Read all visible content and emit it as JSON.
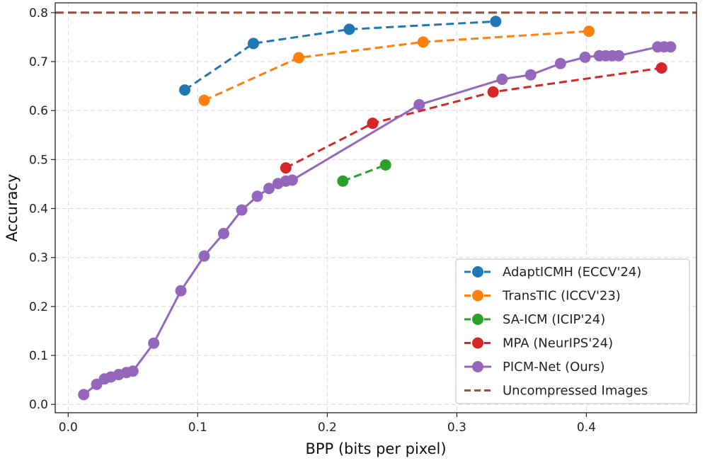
{
  "chart_data": {
    "type": "line",
    "xlabel": "BPP (bits per pixel)",
    "ylabel": "Accuracy",
    "xlim": [
      -0.01,
      0.485
    ],
    "ylim": [
      -0.017,
      0.82
    ],
    "x_ticks": [
      0.0,
      0.1,
      0.2,
      0.3,
      0.4
    ],
    "x_tick_labels": [
      "0.0",
      "0.1",
      "0.2",
      "0.3",
      "0.4"
    ],
    "y_ticks": [
      0.0,
      0.1,
      0.2,
      0.3,
      0.4,
      0.5,
      0.6,
      0.7,
      0.8
    ],
    "y_tick_labels": [
      "0.0",
      "0.1",
      "0.2",
      "0.3",
      "0.4",
      "0.5",
      "0.6",
      "0.7",
      "0.8"
    ],
    "grid": true,
    "legend_position": "bottom-right",
    "series": [
      {
        "name": "AdaptICMH (ECCV'24)",
        "color": "#1f77b4",
        "style": "dashed",
        "marker": "circle",
        "x": [
          0.09,
          0.143,
          0.217,
          0.33
        ],
        "y": [
          0.642,
          0.737,
          0.766,
          0.782
        ]
      },
      {
        "name": "TransTIC (ICCV'23)",
        "color": "#ff7f0e",
        "style": "dashed",
        "marker": "circle",
        "x": [
          0.105,
          0.178,
          0.274,
          0.402
        ],
        "y": [
          0.621,
          0.708,
          0.74,
          0.762
        ]
      },
      {
        "name": "SA-ICM (ICIP'24)",
        "color": "#2ca02c",
        "style": "dashed",
        "marker": "circle",
        "x": [
          0.212,
          0.245
        ],
        "y": [
          0.456,
          0.489
        ]
      },
      {
        "name": "MPA (NeurIPS'24)",
        "color": "#d62728",
        "style": "dashed",
        "marker": "circle",
        "x": [
          0.168,
          0.235,
          0.328,
          0.458
        ],
        "y": [
          0.483,
          0.574,
          0.638,
          0.687
        ]
      },
      {
        "name": "PICM-Net (Ours)",
        "color": "#9467bd",
        "style": "solid",
        "marker": "circle",
        "x": [
          0.012,
          0.022,
          0.028,
          0.033,
          0.039,
          0.045,
          0.05,
          0.066,
          0.087,
          0.105,
          0.12,
          0.134,
          0.146,
          0.155,
          0.162,
          0.168,
          0.173,
          0.271,
          0.335,
          0.357,
          0.38,
          0.399,
          0.41,
          0.415,
          0.42,
          0.425,
          0.455,
          0.46,
          0.465
        ],
        "y": [
          0.02,
          0.041,
          0.052,
          0.056,
          0.061,
          0.065,
          0.068,
          0.125,
          0.232,
          0.303,
          0.349,
          0.397,
          0.425,
          0.441,
          0.451,
          0.456,
          0.458,
          0.612,
          0.664,
          0.673,
          0.696,
          0.709,
          0.712,
          0.712,
          0.712,
          0.712,
          0.73,
          0.73,
          0.73
        ]
      },
      {
        "name": "Uncompressed Images",
        "color": "#8c564b",
        "style": "dashed",
        "marker": "none",
        "type": "hline",
        "y": 0.8
      }
    ]
  }
}
